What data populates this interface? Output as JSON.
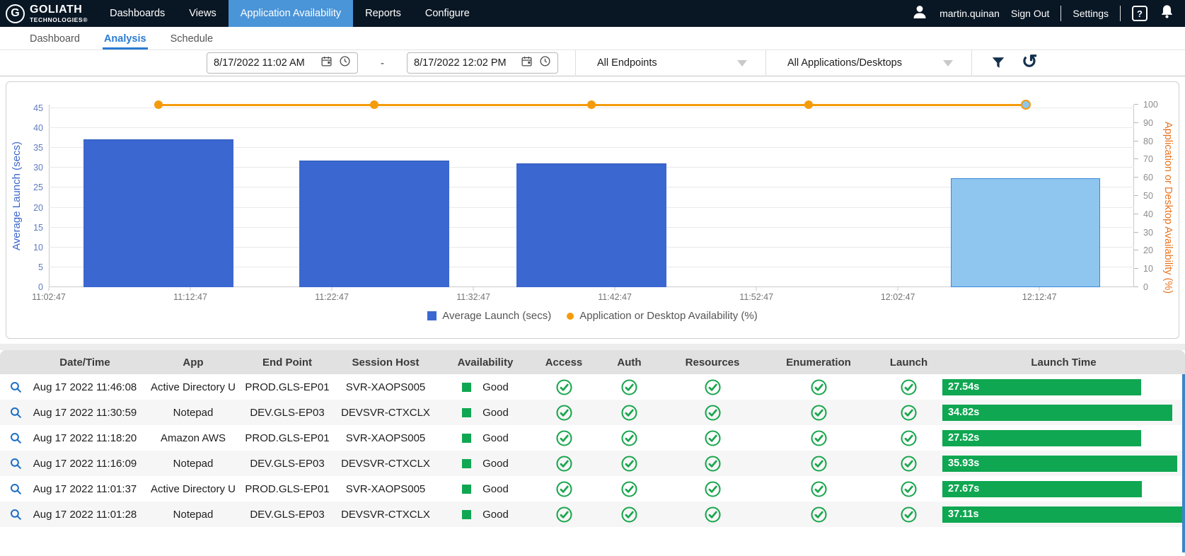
{
  "brand": {
    "top": "GOLIATH",
    "bottom": "TECHNOLOGIES",
    "registered": "®",
    "monogram": "G"
  },
  "navbar": {
    "items": [
      {
        "label": "Dashboards",
        "active": false
      },
      {
        "label": "Views",
        "active": false
      },
      {
        "label": "Application Availability",
        "active": true
      },
      {
        "label": "Reports",
        "active": false
      },
      {
        "label": "Configure",
        "active": false
      }
    ],
    "user": "martin.quinan",
    "sign_out": "Sign Out",
    "settings": "Settings",
    "help": "?"
  },
  "tabs": [
    {
      "label": "Dashboard",
      "active": false
    },
    {
      "label": "Analysis",
      "active": true
    },
    {
      "label": "Schedule",
      "active": false
    }
  ],
  "filters": {
    "start_value": "8/17/2022 11:02 AM",
    "end_value": "8/17/2022 12:02 PM",
    "separator": "-",
    "endpoints_value": "All Endpoints",
    "applications_value": "All Applications/Desktops"
  },
  "chart_data": {
    "type": "bar",
    "title": "",
    "x_ticks": [
      "11:02:47",
      "11:12:47",
      "11:22:47",
      "11:32:47",
      "11:42:47",
      "11:52:47",
      "12:02:47",
      "12:12:47"
    ],
    "series": [
      {
        "name": "Average Launch (secs)",
        "type": "bar",
        "axis": "left",
        "color": "#3b68d0",
        "values": [
          37.2,
          31.9,
          31.2,
          null,
          27.4
        ]
      },
      {
        "name": "Application or Desktop Availability (%)",
        "type": "line",
        "axis": "right",
        "color": "#f59b0b",
        "values": [
          100,
          100,
          100,
          100,
          100
        ]
      }
    ],
    "highlighted_index": 4,
    "left_axis": {
      "label": "Average Launch (secs)",
      "min": 0,
      "max": 45,
      "ticks": [
        0,
        5,
        10,
        15,
        20,
        25,
        30,
        35,
        40,
        45
      ]
    },
    "right_axis": {
      "label": "Application or Desktop Availability (%)",
      "min": 0,
      "max": 100,
      "ticks": [
        0,
        10,
        20,
        30,
        40,
        50,
        60,
        70,
        80,
        90,
        100
      ]
    },
    "grid": true,
    "legend_position": "bottom"
  },
  "table": {
    "columns": [
      "Date/Time",
      "App",
      "End Point",
      "Session Host",
      "Availability",
      "Access",
      "Auth",
      "Resources",
      "Enumeration",
      "Launch",
      "Launch Time"
    ],
    "rows": [
      {
        "datetime": "Aug 17 2022 11:46:08",
        "app": "Active Directory U",
        "endpoint": "PROD.GLS-EP01",
        "session_host": "SVR-XAOPS005",
        "availability": "Good",
        "launch_time": "27.54s",
        "launch_seconds": 27.54
      },
      {
        "datetime": "Aug 17 2022 11:30:59",
        "app": "Notepad",
        "endpoint": "DEV.GLS-EP03",
        "session_host": "DEVSVR-CTXCLX",
        "availability": "Good",
        "launch_time": "34.82s",
        "launch_seconds": 34.82
      },
      {
        "datetime": "Aug 17 2022 11:18:20",
        "app": "Amazon AWS",
        "endpoint": "PROD.GLS-EP01",
        "session_host": "SVR-XAOPS005",
        "availability": "Good",
        "launch_time": "27.52s",
        "launch_seconds": 27.52
      },
      {
        "datetime": "Aug 17 2022 11:16:09",
        "app": "Notepad",
        "endpoint": "DEV.GLS-EP03",
        "session_host": "DEVSVR-CTXCLX",
        "availability": "Good",
        "launch_time": "35.93s",
        "launch_seconds": 35.93
      },
      {
        "datetime": "Aug 17 2022 11:01:37",
        "app": "Active Directory U",
        "endpoint": "PROD.GLS-EP01",
        "session_host": "SVR-XAOPS005",
        "availability": "Good",
        "launch_time": "27.67s",
        "launch_seconds": 27.67
      },
      {
        "datetime": "Aug 17 2022 11:01:28",
        "app": "Notepad",
        "endpoint": "DEV.GLS-EP03",
        "session_host": "DEVSVR-CTXCLX",
        "availability": "Good",
        "launch_time": "37.11s",
        "launch_seconds": 37.11
      }
    ]
  }
}
